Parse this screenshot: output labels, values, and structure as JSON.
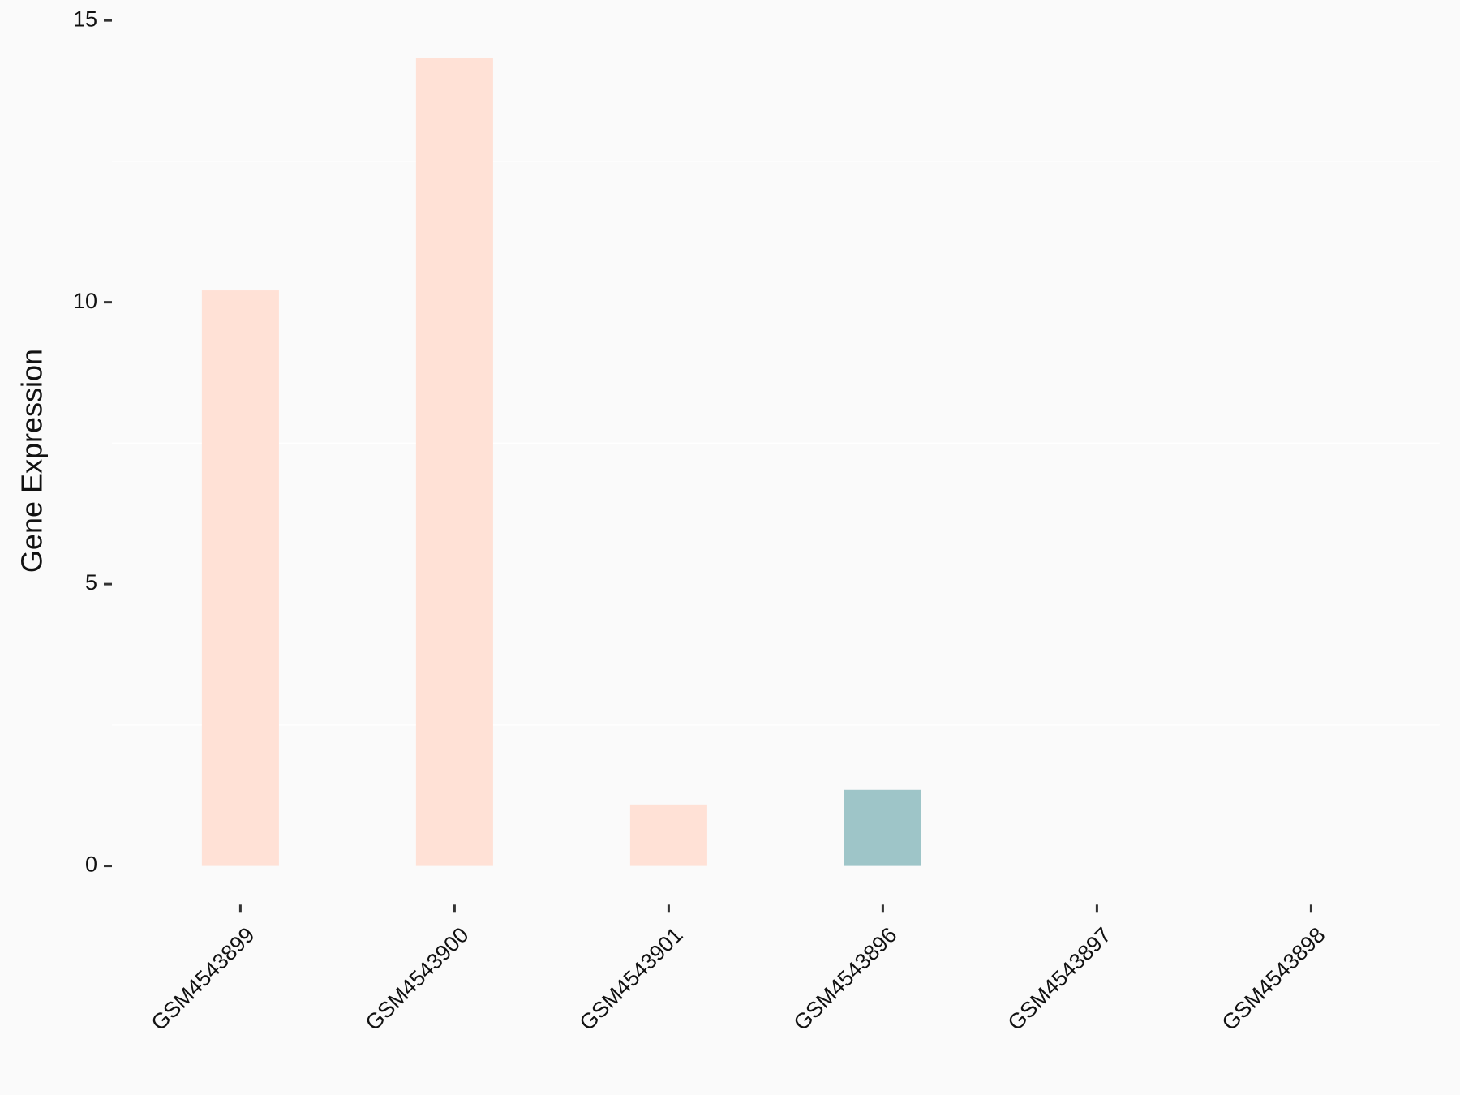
{
  "chart_data": {
    "type": "bar",
    "y_label": "Gene Expression",
    "categories": [
      "GSM4543899",
      "GSM4543900",
      "GSM4543901",
      "GSM4543896",
      "GSM4543897",
      "GSM4543898"
    ],
    "values": [
      10.21,
      14.34,
      1.09,
      1.35,
      0,
      0
    ],
    "colors": [
      "#ffe1d6",
      "#ffe1d6",
      "#ffe1d6",
      "#9ec5c8",
      "#9ec5c8",
      "#9ec5c8"
    ],
    "ylim": [
      -0.6,
      15.1
    ],
    "yticks": [
      0,
      5,
      10,
      15
    ],
    "minor_grid": [
      2.5,
      7.5,
      12.5
    ]
  }
}
